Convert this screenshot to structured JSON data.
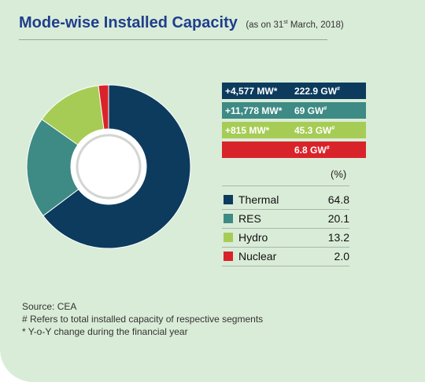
{
  "header": {
    "title": "Mode-wise Installed Capacity",
    "subtitle_pre": "(as on 31",
    "subtitle_sup": "st",
    "subtitle_post": " March, 2018)"
  },
  "chart_data": {
    "type": "pie",
    "title": "Mode-wise Installed Capacity",
    "unit_label": "(%)",
    "categories": [
      "Thermal",
      "RES",
      "Hydro",
      "Nuclear"
    ],
    "values": [
      64.8,
      20.1,
      13.2,
      2.0
    ],
    "colors": [
      "#0c3b5e",
      "#3e8a84",
      "#a6cc55",
      "#d9232a"
    ],
    "legend_placement": "right",
    "capacity_boxes": [
      {
        "change": "+4,577 MW*",
        "total": "222.9 GW",
        "mark": "#",
        "color": "#0c3b5e"
      },
      {
        "change": "+11,778 MW*",
        "total": "69 GW",
        "mark": "#",
        "color": "#3e8a84"
      },
      {
        "change": "+815 MW*",
        "total": "45.3 GW",
        "mark": "#",
        "color": "#a6cc55"
      },
      {
        "change": "",
        "total": "6.8 GW",
        "mark": "#",
        "color": "#d9232a"
      }
    ]
  },
  "legend": {
    "items": [
      {
        "label": "Thermal",
        "value": "64.8",
        "color": "#0c3b5e"
      },
      {
        "label": "RES",
        "value": "20.1",
        "color": "#3e8a84"
      },
      {
        "label": "Hydro",
        "value": "13.2",
        "color": "#a6cc55"
      },
      {
        "label": "Nuclear",
        "value": "2.0",
        "color": "#d9232a"
      }
    ]
  },
  "notes": {
    "source": "Source: CEA",
    "hash_note": "# Refers to total installed capacity of respective segments",
    "star_note": "* Y-o-Y change during the financial year"
  }
}
